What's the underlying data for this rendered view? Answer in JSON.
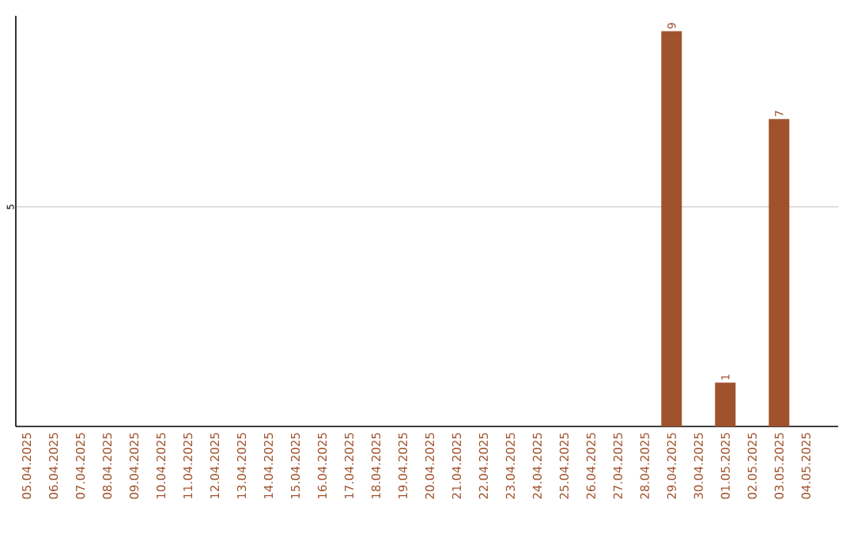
{
  "chart_data": {
    "type": "bar",
    "categories": [
      "05.04.2025",
      "06.04.2025",
      "07.04.2025",
      "08.04.2025",
      "09.04.2025",
      "10.04.2025",
      "11.04.2025",
      "12.04.2025",
      "13.04.2025",
      "14.04.2025",
      "15.04.2025",
      "16.04.2025",
      "17.04.2025",
      "18.04.2025",
      "19.04.2025",
      "20.04.2025",
      "21.04.2025",
      "22.04.2025",
      "23.04.2025",
      "24.04.2025",
      "25.04.2025",
      "26.04.2025",
      "27.04.2025",
      "28.04.2025",
      "29.04.2025",
      "30.04.2025",
      "01.05.2025",
      "02.05.2025",
      "03.05.2025",
      "04.05.2025"
    ],
    "values": [
      null,
      null,
      null,
      null,
      null,
      null,
      null,
      null,
      null,
      null,
      null,
      null,
      null,
      null,
      null,
      null,
      null,
      null,
      null,
      null,
      null,
      null,
      null,
      null,
      9,
      null,
      1,
      null,
      7,
      null
    ],
    "data_labels": true,
    "color": "#a0522d",
    "ylim": [
      0,
      9.35
    ],
    "yticks": [
      5
    ],
    "grid": "y"
  }
}
